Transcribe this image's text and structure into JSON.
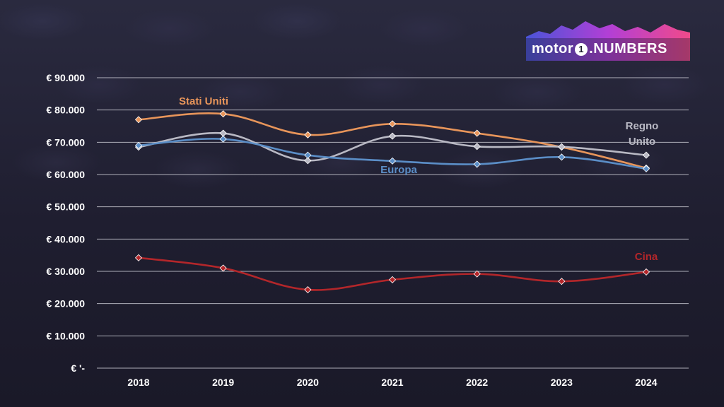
{
  "brand": {
    "part1": "motor",
    "part2": "1",
    "part3": ".NUMBERS"
  },
  "chart_data": {
    "type": "line",
    "title": "",
    "xlabel": "",
    "ylabel": "",
    "categories": [
      "2018",
      "2019",
      "2020",
      "2021",
      "2022",
      "2023",
      "2024"
    ],
    "ylim": [
      0,
      90000
    ],
    "yticks": [
      0,
      10000,
      20000,
      30000,
      40000,
      50000,
      60000,
      70000,
      80000,
      90000
    ],
    "ytick_labels": [
      "€ '-",
      "€ 10.000",
      "€ 20.000",
      "€ 30.000",
      "€ 40.000",
      "€ 50.000",
      "€ 60.000",
      "€ 70.000",
      "€ 80.000",
      "€ 90.000"
    ],
    "grid": true,
    "series": [
      {
        "name": "Stati Uniti",
        "label_lines": [
          "Stati Uniti"
        ],
        "color": "#e8955a",
        "values": [
          77000,
          78800,
          72300,
          75700,
          72800,
          68500,
          62000
        ]
      },
      {
        "name": "Regno Unito",
        "label_lines": [
          "Regno",
          "Unito"
        ],
        "color": "#b9b9c4",
        "values": [
          68500,
          72800,
          64300,
          71900,
          68700,
          68600,
          66000
        ]
      },
      {
        "name": "Europa",
        "label_lines": [
          "Europa"
        ],
        "color": "#5b8ec7",
        "values": [
          69000,
          71000,
          66000,
          64200,
          63200,
          65400,
          61800
        ]
      },
      {
        "name": "Cina",
        "label_lines": [
          "Cina"
        ],
        "color": "#b3262a",
        "values": [
          34200,
          31000,
          24300,
          27400,
          29200,
          26900,
          29800
        ]
      }
    ]
  }
}
